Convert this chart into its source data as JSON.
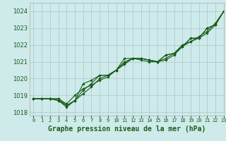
{
  "title": "Graphe pression niveau de la mer (hPa)",
  "bg_color": "#ceeaea",
  "grid_color": "#b0cccc",
  "line_color": "#1a5c1a",
  "xlim": [
    -0.5,
    23
  ],
  "ylim": [
    1017.8,
    1024.5
  ],
  "yticks": [
    1018,
    1019,
    1020,
    1021,
    1022,
    1023,
    1024
  ],
  "xtick_labels": [
    "0",
    "1",
    "2",
    "3",
    "4",
    "5",
    "6",
    "7",
    "8",
    "9",
    "10",
    "11",
    "12",
    "13",
    "14",
    "15",
    "16",
    "17",
    "18",
    "19",
    "20",
    "21",
    "22",
    "23"
  ],
  "series": [
    [
      1018.8,
      1018.8,
      1018.8,
      1018.8,
      1018.5,
      1019.0,
      1019.4,
      1019.6,
      1019.9,
      1020.1,
      1020.5,
      1021.2,
      1021.2,
      1021.1,
      1021.0,
      1021.0,
      1021.2,
      1021.5,
      1021.9,
      1022.4,
      1022.4,
      1023.0,
      1023.2,
      1024.0
    ],
    [
      1018.8,
      1018.8,
      1018.8,
      1018.7,
      1018.3,
      1018.7,
      1019.1,
      1019.5,
      1020.0,
      1020.2,
      1020.5,
      1020.9,
      1021.2,
      1021.2,
      1021.1,
      1021.0,
      1021.1,
      1021.4,
      1021.9,
      1022.4,
      1022.4,
      1023.0,
      1023.2,
      1024.0
    ],
    [
      1018.8,
      1018.8,
      1018.8,
      1018.7,
      1018.4,
      1018.7,
      1019.3,
      1019.7,
      1020.2,
      1020.2,
      1020.5,
      1020.85,
      1021.2,
      1021.2,
      1021.1,
      1021.0,
      1021.4,
      1021.5,
      1021.9,
      1022.2,
      1022.4,
      1022.7,
      1023.2,
      1024.0
    ],
    [
      1018.8,
      1018.8,
      1018.8,
      1018.8,
      1018.4,
      1018.7,
      1019.7,
      1019.9,
      1020.2,
      1020.2,
      1020.5,
      1021.0,
      1021.2,
      1021.2,
      1021.1,
      1021.0,
      1021.4,
      1021.5,
      1022.0,
      1022.2,
      1022.5,
      1022.8,
      1023.3,
      1024.0
    ]
  ],
  "ylabel_fontsize": 6,
  "xlabel_fontsize": 7,
  "xtick_fontsize": 5,
  "ytick_fontsize": 6
}
